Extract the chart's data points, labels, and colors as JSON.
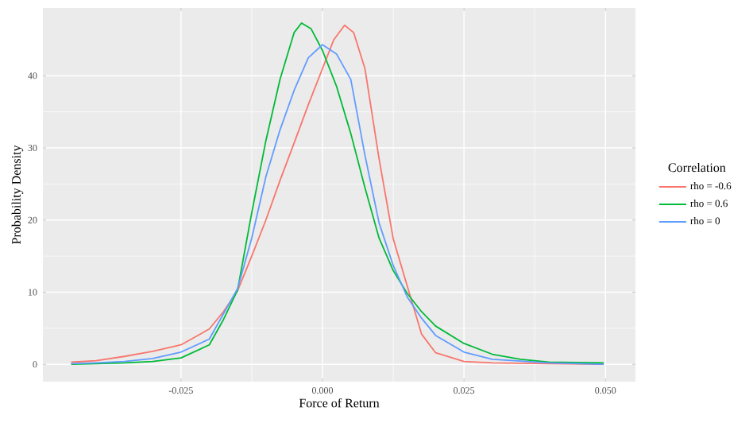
{
  "chart_data": {
    "type": "line",
    "xlabel": "Force of Return",
    "ylabel": "Probability Density",
    "legend_title": "Correlation",
    "legend": "right",
    "grid": true,
    "xlim": [
      -0.0494,
      0.0553
    ],
    "ylim": [
      -2.4,
      49.4
    ],
    "xticks": [
      {
        "value": -0.025,
        "label": "-0.025"
      },
      {
        "value": 0,
        "label": "0.000"
      },
      {
        "value": 0.025,
        "label": "0.025"
      },
      {
        "value": 0.05,
        "label": "0.050"
      }
    ],
    "yticks": [
      0,
      10,
      20,
      30,
      40
    ],
    "series": [
      {
        "name": "rho = -0.6",
        "color": "#F8766D",
        "x": [
          -0.0444,
          -0.04,
          -0.035,
          -0.03,
          -0.025,
          -0.02,
          -0.0175,
          -0.015,
          -0.0125,
          -0.01,
          -0.0075,
          -0.005,
          -0.0025,
          0,
          0.002,
          0.0039,
          0.0055,
          0.0075,
          0.01,
          0.0125,
          0.015,
          0.0175,
          0.02,
          0.025,
          0.03,
          0.04,
          0.0497
        ],
        "values": [
          0.3,
          0.5,
          1.1,
          1.8,
          2.7,
          4.9,
          7.3,
          10.2,
          15,
          20,
          25.5,
          30.7,
          36,
          41,
          45,
          47,
          46,
          41,
          28.5,
          17.4,
          10.8,
          4.2,
          1.6,
          0.4,
          0.2,
          0.1,
          0
        ]
      },
      {
        "name": "rho = 0.6",
        "color": "#00BA38",
        "x": [
          -0.0444,
          -0.04,
          -0.035,
          -0.03,
          -0.025,
          -0.02,
          -0.0175,
          -0.015,
          -0.0125,
          -0.01,
          -0.0075,
          -0.005,
          -0.0037,
          -0.002,
          0,
          0.0025,
          0.005,
          0.0075,
          0.01,
          0.0125,
          0.015,
          0.0175,
          0.02,
          0.025,
          0.03,
          0.035,
          0.04,
          0.0497
        ],
        "values": [
          0,
          0.1,
          0.2,
          0.4,
          0.9,
          2.7,
          6.2,
          10.3,
          21,
          31,
          39.5,
          46,
          47.3,
          46.5,
          43.5,
          38.5,
          32,
          24.5,
          17.5,
          13,
          9.8,
          7.3,
          5.3,
          2.9,
          1.4,
          0.7,
          0.3,
          0.2
        ]
      },
      {
        "name": "rho = 0",
        "color": "#619CFF",
        "x": [
          -0.0444,
          -0.04,
          -0.035,
          -0.03,
          -0.025,
          -0.02,
          -0.0175,
          -0.015,
          -0.0125,
          -0.01,
          -0.0075,
          -0.005,
          -0.0025,
          0,
          0.0025,
          0.005,
          0.0075,
          0.01,
          0.0125,
          0.015,
          0.0175,
          0.02,
          0.025,
          0.03,
          0.04,
          0.0497
        ],
        "values": [
          0.1,
          0.2,
          0.4,
          0.8,
          1.7,
          3.5,
          7,
          10.5,
          17.5,
          26,
          32.5,
          38,
          42.5,
          44.3,
          43,
          39.5,
          29,
          19.6,
          13.7,
          9.3,
          6.4,
          4,
          1.7,
          0.7,
          0.2,
          0
        ]
      }
    ]
  }
}
